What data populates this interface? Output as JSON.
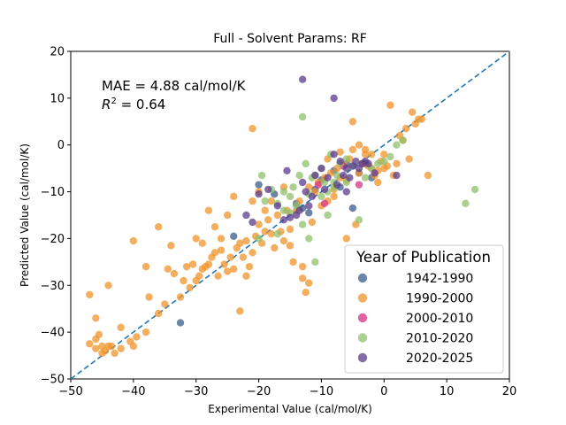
{
  "chart_data": {
    "type": "scatter",
    "title": "Full - Solvent Params: RF",
    "xlabel": "Experimental Value (cal/mol/K)",
    "ylabel": "Predicted Value (cal/mol/K)",
    "xlim": [
      -50,
      20
    ],
    "ylim": [
      -50,
      20
    ],
    "xticks": [
      "−50",
      "−40",
      "−30",
      "−20",
      "−10",
      "0",
      "10",
      "20"
    ],
    "yticks": [
      "−50",
      "−40",
      "−30",
      "−20",
      "−10",
      "0",
      "10",
      "20"
    ],
    "annotations": {
      "mae": "MAE = 4.88 cal/mol/K",
      "r2_prefix": "R",
      "r2_sup": "2",
      "r2_suffix": " = 0.64"
    },
    "reference_line": {
      "from": [
        -50,
        -50
      ],
      "to": [
        20,
        20
      ],
      "style": "dashed",
      "color": "#1f77b4"
    },
    "legend": {
      "title": "Year of Publication",
      "position": "lower-right"
    },
    "series": [
      {
        "name": "1942-1990",
        "color": "#3a5c8c",
        "points": [
          [
            -32.5,
            -38
          ],
          [
            -24,
            -19.5
          ],
          [
            -20,
            -8.5
          ],
          [
            -17.5,
            -10.5
          ],
          [
            -13,
            -13.5
          ],
          [
            -12,
            -14.5
          ],
          [
            -8,
            -5.5
          ],
          [
            -6,
            -4
          ],
          [
            -5,
            -13.5
          ],
          [
            -4,
            -6
          ],
          [
            -3,
            -4
          ],
          [
            -10,
            -7.5
          ],
          [
            -11,
            -9.5
          ],
          [
            -14,
            -12.5
          ],
          [
            -7,
            -9
          ],
          [
            -2,
            -7
          ]
        ]
      },
      {
        "name": "1990-2000",
        "color": "#f0932b",
        "points": [
          [
            -47,
            -42.5
          ],
          [
            -46,
            -43.5
          ],
          [
            -46,
            -41.5
          ],
          [
            -45.5,
            -40.5
          ],
          [
            -45,
            -44.5
          ],
          [
            -45,
            -43
          ],
          [
            -44.5,
            -44
          ],
          [
            -44,
            -43
          ],
          [
            -43.5,
            -43
          ],
          [
            -43,
            -44.5
          ],
          [
            -42,
            -43.5
          ],
          [
            -42,
            -39
          ],
          [
            -40.5,
            -42
          ],
          [
            -40,
            -43
          ],
          [
            -39.5,
            -41
          ],
          [
            -38,
            -40
          ],
          [
            -37.5,
            -32.5
          ],
          [
            -36,
            -36
          ],
          [
            -35,
            -34
          ],
          [
            -34.5,
            -26.5
          ],
          [
            -33.5,
            -27.5
          ],
          [
            -32.5,
            -32.5
          ],
          [
            -32,
            -29
          ],
          [
            -31.5,
            -26
          ],
          [
            -31,
            -30.5
          ],
          [
            -30.5,
            -25.5
          ],
          [
            -30,
            -29
          ],
          [
            -29.5,
            -28
          ],
          [
            -29,
            -26.5
          ],
          [
            -28.5,
            -26
          ],
          [
            -28,
            -25.5
          ],
          [
            -27.5,
            -24
          ],
          [
            -27,
            -23
          ],
          [
            -26.5,
            -28
          ],
          [
            -26,
            -22.5
          ],
          [
            -25.5,
            -25.5
          ],
          [
            -25,
            -27
          ],
          [
            -24.5,
            -24
          ],
          [
            -24,
            -26.5
          ],
          [
            -23.5,
            -22
          ],
          [
            -23,
            -21
          ],
          [
            -22.5,
            -24
          ],
          [
            -22,
            -20.5
          ],
          [
            -21.5,
            -26
          ],
          [
            -21,
            -23
          ],
          [
            -20.5,
            -19.5
          ],
          [
            -20,
            -17
          ],
          [
            -19.5,
            -21
          ],
          [
            -19,
            -18.5
          ],
          [
            -18.5,
            -16
          ],
          [
            -18,
            -19
          ],
          [
            -17.5,
            -22
          ],
          [
            -17,
            -15
          ],
          [
            -16.5,
            -18.5
          ],
          [
            -16,
            -20.5
          ],
          [
            -15.5,
            -14
          ],
          [
            -15,
            -18
          ],
          [
            -14.5,
            -25
          ],
          [
            -14,
            -14
          ],
          [
            -13.5,
            -12
          ],
          [
            -13,
            -28.5
          ],
          [
            -12.5,
            -31.5
          ],
          [
            -12,
            -29.5
          ],
          [
            -11.5,
            -16.5
          ],
          [
            -11,
            -10
          ],
          [
            -10.5,
            -8
          ],
          [
            -10,
            -13
          ],
          [
            -9.5,
            -7
          ],
          [
            -9,
            -12
          ],
          [
            -8.5,
            -6
          ],
          [
            -8,
            -9.5
          ],
          [
            -7.5,
            -5
          ],
          [
            -7,
            -7
          ],
          [
            -6.5,
            -4
          ],
          [
            -6,
            -7.5
          ],
          [
            -5.5,
            -3
          ],
          [
            -5,
            -1
          ],
          [
            -4.5,
            -17
          ],
          [
            -4,
            -6
          ],
          [
            -3.5,
            -4
          ],
          [
            -3,
            -2
          ],
          [
            -2.5,
            -4.5
          ],
          [
            -2,
            -5
          ],
          [
            -1.5,
            -6.5
          ],
          [
            -1,
            -5.5
          ],
          [
            -0.5,
            -3.5
          ],
          [
            0,
            -5
          ],
          [
            0.5,
            -4.5
          ],
          [
            1,
            8.5
          ],
          [
            1.5,
            -6.5
          ],
          [
            2,
            -4
          ],
          [
            2.5,
            2
          ],
          [
            3,
            1
          ],
          [
            3.5,
            3.5
          ],
          [
            4,
            -3
          ],
          [
            4.5,
            7
          ],
          [
            5,
            4.5
          ],
          [
            5.5,
            5.5
          ],
          [
            6,
            5.5
          ],
          [
            7,
            -6.5
          ],
          [
            -21,
            3.5
          ],
          [
            -46,
            -37
          ],
          [
            -47,
            -32
          ],
          [
            -44,
            -30
          ],
          [
            -40,
            -20.5
          ],
          [
            -38,
            -26
          ],
          [
            -36,
            -17.5
          ],
          [
            -34,
            -21.5
          ],
          [
            -30,
            -20
          ],
          [
            -29,
            -21
          ],
          [
            -28,
            -14
          ],
          [
            -27,
            -17.5
          ],
          [
            -26,
            -20
          ],
          [
            -25,
            -15
          ],
          [
            -24,
            -11
          ],
          [
            -23,
            -35.5
          ],
          [
            -22,
            -28
          ],
          [
            -21,
            -12
          ],
          [
            -20,
            -10
          ],
          [
            -19,
            -14
          ],
          [
            -18,
            -12
          ],
          [
            -16,
            -9
          ],
          [
            -15,
            -21.5
          ],
          [
            -13,
            -26
          ],
          [
            -12,
            -9
          ],
          [
            -9,
            -3
          ],
          [
            -7,
            -1.5
          ],
          [
            -5,
            5
          ],
          [
            -4,
            0
          ],
          [
            -3,
            -1
          ],
          [
            -2,
            -2
          ],
          [
            0,
            -2
          ],
          [
            -6,
            -20
          ],
          [
            -8,
            -11
          ],
          [
            -1,
            -8
          ]
        ]
      },
      {
        "name": "2000-2010",
        "color": "#d63384",
        "points": [
          [
            -10.5,
            -8.5
          ],
          [
            -9.5,
            -12.5
          ],
          [
            -4,
            -8.5
          ],
          [
            -6.5,
            -4.5
          ]
        ]
      },
      {
        "name": "2010-2020",
        "color": "#8fc06b",
        "points": [
          [
            -19.5,
            -6.5
          ],
          [
            -18,
            -9.5
          ],
          [
            -17,
            -12.5
          ],
          [
            -16,
            -10
          ],
          [
            -15,
            -14.5
          ],
          [
            -14.5,
            -9
          ],
          [
            -13.5,
            -6.5
          ],
          [
            -13,
            6
          ],
          [
            -12.5,
            -4
          ],
          [
            -12,
            -10.5
          ],
          [
            -11.5,
            -7
          ],
          [
            -11,
            -6.5
          ],
          [
            -10,
            -5
          ],
          [
            -9.5,
            -8
          ],
          [
            -9,
            -15
          ],
          [
            -8.5,
            -2
          ],
          [
            -8,
            -9
          ],
          [
            -7.5,
            -6.5
          ],
          [
            -7,
            -4
          ],
          [
            -6,
            -3
          ],
          [
            -5,
            -4.5
          ],
          [
            -4,
            -16
          ],
          [
            -3,
            -7
          ],
          [
            -2,
            -5
          ],
          [
            -1,
            -4
          ],
          [
            0,
            -3.5
          ],
          [
            1,
            -2.5
          ],
          [
            2,
            0
          ],
          [
            3,
            1
          ],
          [
            -12,
            -20
          ],
          [
            -11,
            -25
          ],
          [
            -13,
            -17
          ],
          [
            -14,
            -13
          ],
          [
            -15,
            -11
          ],
          [
            -16,
            -14
          ],
          [
            -17,
            -19
          ],
          [
            -20,
            -20
          ],
          [
            -19,
            -12
          ],
          [
            13,
            -12.5
          ],
          [
            14.5,
            -9.5
          ],
          [
            -10,
            -11
          ],
          [
            -9,
            -10
          ],
          [
            -8,
            -8
          ],
          [
            -6,
            -8
          ]
        ]
      },
      {
        "name": "2020-2025",
        "color": "#5b3a8e",
        "points": [
          [
            -13,
            14
          ],
          [
            -8,
            10
          ],
          [
            -20,
            -10.5
          ],
          [
            -18.5,
            -9.5
          ],
          [
            -15.5,
            -5.5
          ],
          [
            -13,
            -8
          ],
          [
            -12.5,
            -10
          ],
          [
            -11.5,
            -11
          ],
          [
            -11,
            -6.5
          ],
          [
            -10,
            -5
          ],
          [
            -9.5,
            -9.5
          ],
          [
            -9,
            -7
          ],
          [
            -8,
            -2
          ],
          [
            -7,
            -3.5
          ],
          [
            -6.5,
            -6.5
          ],
          [
            -6,
            -5
          ],
          [
            -5.5,
            -7
          ],
          [
            -5,
            -4.5
          ],
          [
            -4.5,
            -3.5
          ],
          [
            -4,
            -5
          ],
          [
            -3.5,
            -4
          ],
          [
            -3,
            -3.5
          ],
          [
            -2.5,
            -4
          ],
          [
            -1.5,
            -6
          ],
          [
            -14,
            -15
          ],
          [
            -13.5,
            -14
          ],
          [
            -12,
            -13
          ],
          [
            -15,
            -15.5
          ],
          [
            -22,
            -15
          ],
          [
            -21,
            -16.5
          ],
          [
            -17,
            -13
          ],
          [
            -16,
            -16
          ],
          [
            -7.5,
            -8.5
          ],
          [
            -6,
            -10
          ],
          [
            2,
            -6.5
          ]
        ]
      }
    ]
  }
}
